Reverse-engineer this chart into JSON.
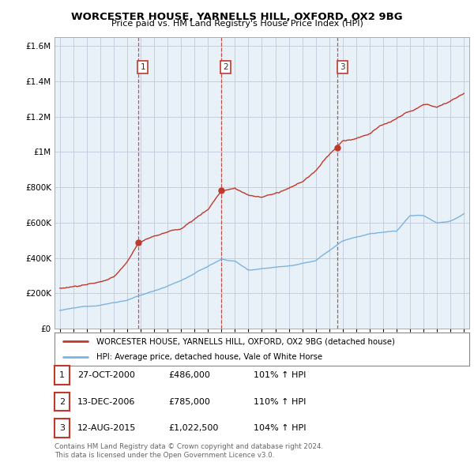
{
  "title": "WORCESTER HOUSE, YARNELLS HILL, OXFORD, OX2 9BG",
  "subtitle": "Price paid vs. HM Land Registry's House Price Index (HPI)",
  "legend_line1": "WORCESTER HOUSE, YARNELLS HILL, OXFORD, OX2 9BG (detached house)",
  "legend_line2": "HPI: Average price, detached house, Vale of White Horse",
  "footer1": "Contains HM Land Registry data © Crown copyright and database right 2024.",
  "footer2": "This data is licensed under the Open Government Licence v3.0.",
  "transactions": [
    {
      "num": 1,
      "date": "27-OCT-2000",
      "price": "£486,000",
      "pct": "101% ↑ HPI",
      "x_year": 2000.82,
      "y_val": 486000
    },
    {
      "num": 2,
      "date": "13-DEC-2006",
      "price": "£785,000",
      "pct": "110% ↑ HPI",
      "x_year": 2006.95,
      "y_val": 785000
    },
    {
      "num": 3,
      "date": "12-AUG-2015",
      "price": "£1,022,500",
      "pct": "104% ↑ HPI",
      "x_year": 2015.62,
      "y_val": 1022500
    }
  ],
  "hpi_color": "#7ab4e0",
  "price_color": "#c0392b",
  "chart_bg": "#e8f0f8",
  "background_color": "#ffffff",
  "grid_color": "#c0c8d8",
  "ylim": [
    0,
    1650000
  ],
  "xlim_start": 1994.6,
  "xlim_end": 2025.4,
  "yticks": [
    0,
    200000,
    400000,
    600000,
    800000,
    1000000,
    1200000,
    1400000,
    1600000
  ]
}
